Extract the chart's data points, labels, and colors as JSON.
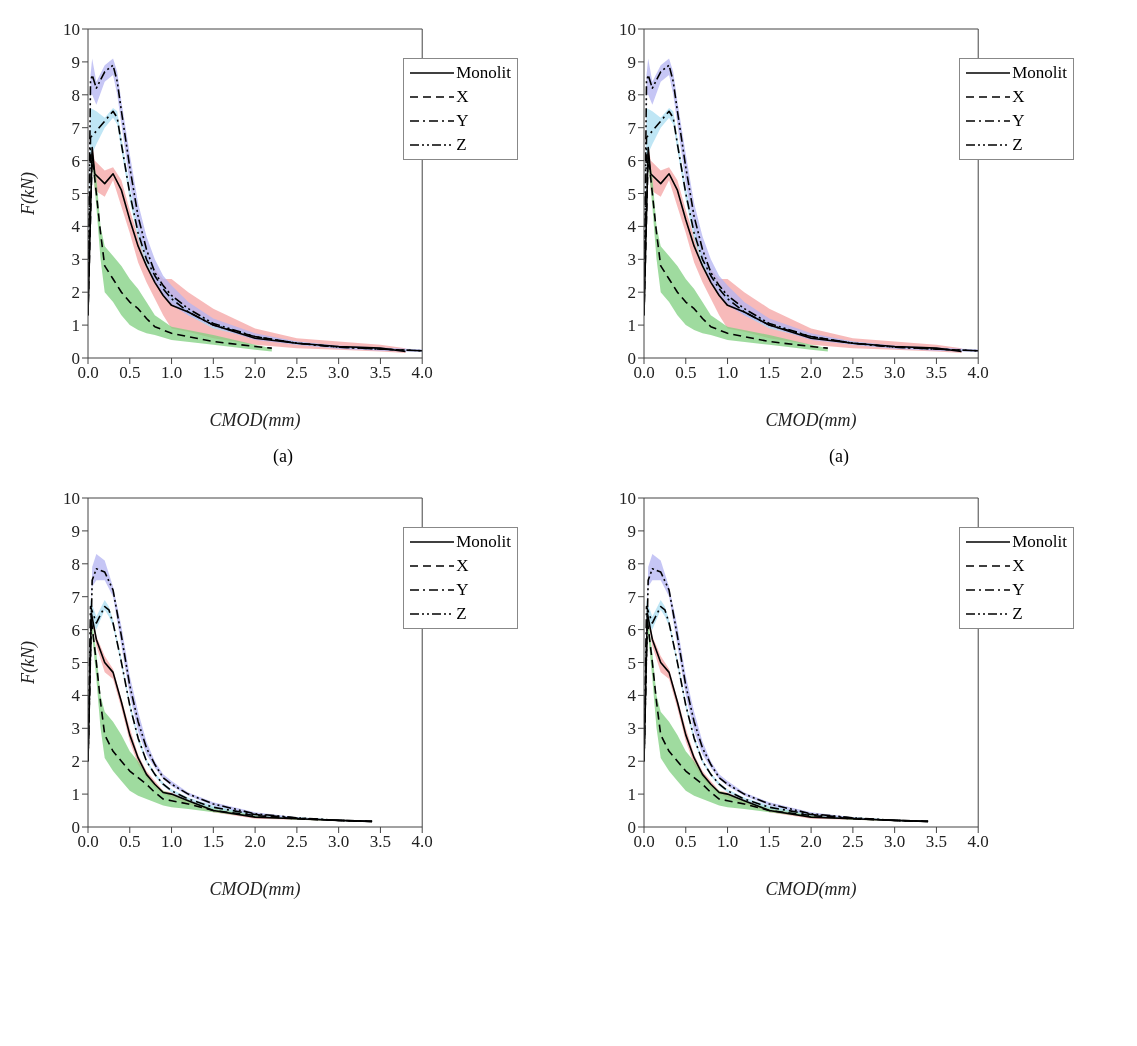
{
  "chart_data": [
    {
      "type": "line",
      "xlabel": "CMOD(mm)",
      "ylabel": "F(kN)",
      "annotations": [
        "(a)"
      ],
      "xlim": [
        0,
        4
      ],
      "ylim": [
        0,
        10
      ],
      "xticks": [
        {
          "value": 0,
          "label": "0.0"
        },
        {
          "value": 0.5,
          "label": "0.5"
        },
        {
          "value": 1,
          "label": "1.0"
        },
        {
          "value": 1.5,
          "label": "1.5"
        },
        {
          "value": 2,
          "label": "2.0"
        },
        {
          "value": 2.5,
          "label": "2.5"
        },
        {
          "value": 3,
          "label": "3.0"
        },
        {
          "value": 3.5,
          "label": "3.5"
        },
        {
          "value": 4,
          "label": "4.0"
        }
      ],
      "yticks": [
        0,
        1,
        2,
        3,
        4,
        5,
        6,
        7,
        8,
        9,
        10
      ],
      "grid": false,
      "legend": "top right",
      "marker": "none",
      "series": [
        {
          "name": "Monolit",
          "color": "#000000",
          "line_style": "solid",
          "x": [
            0,
            0.05,
            0.08,
            0.2,
            0.3,
            0.4,
            0.5,
            0.6,
            0.7,
            0.8,
            0.9,
            1.0,
            1.2,
            1.5,
            2.0,
            2.5,
            3.0,
            3.5,
            3.8
          ],
          "values": [
            1.3,
            6.4,
            5.6,
            5.3,
            5.6,
            5.1,
            4.2,
            3.4,
            2.8,
            2.3,
            1.9,
            1.6,
            1.4,
            1.0,
            0.6,
            0.45,
            0.35,
            0.3,
            0.2
          ],
          "lower": [
            1.3,
            6.2,
            5.1,
            4.9,
            5.4,
            4.6,
            3.8,
            2.9,
            2.3,
            1.8,
            1.3,
            0.9,
            0.8,
            0.6,
            0.4,
            0.3,
            0.25,
            0.2,
            0.15
          ],
          "upper": [
            1.3,
            6.5,
            6.0,
            5.7,
            5.8,
            5.4,
            4.5,
            3.7,
            3.0,
            2.7,
            2.4,
            2.4,
            2.0,
            1.5,
            0.9,
            0.6,
            0.5,
            0.4,
            0.3
          ]
        },
        {
          "name": "X",
          "color": "#000000",
          "line_style": "dashed",
          "x": [
            0,
            0.05,
            0.1,
            0.15,
            0.2,
            0.3,
            0.4,
            0.5,
            0.6,
            0.7,
            0.8,
            1.0,
            1.5,
            2.0,
            2.2
          ],
          "values": [
            1.3,
            6.2,
            5.0,
            3.8,
            2.8,
            2.4,
            2.0,
            1.7,
            1.5,
            1.2,
            0.95,
            0.75,
            0.5,
            0.35,
            0.3
          ],
          "lower": [
            1.3,
            6.0,
            4.6,
            3.0,
            2.0,
            1.7,
            1.3,
            1.0,
            0.85,
            0.75,
            0.7,
            0.55,
            0.4,
            0.25,
            0.2
          ],
          "upper": [
            1.3,
            6.3,
            5.5,
            4.0,
            3.4,
            3.1,
            2.8,
            2.4,
            2.1,
            1.7,
            1.3,
            0.95,
            0.7,
            0.4,
            0.3
          ]
        },
        {
          "name": "Y",
          "color": "#000000",
          "line_style": "dashdot",
          "x": [
            0,
            0.03,
            0.1,
            0.2,
            0.3,
            0.35,
            0.4,
            0.5,
            0.6,
            0.7,
            0.8,
            0.9,
            1.0,
            1.2,
            1.5,
            2.0,
            2.5,
            3.0,
            3.5,
            4.0
          ],
          "values": [
            1.3,
            6.7,
            6.9,
            7.2,
            7.5,
            7.3,
            6.5,
            5.0,
            3.8,
            3.0,
            2.5,
            2.1,
            1.8,
            1.4,
            1.0,
            0.65,
            0.45,
            0.33,
            0.27,
            0.22
          ],
          "lower": [
            1.3,
            6.1,
            6.5,
            7.0,
            7.3,
            7.1,
            6.3,
            4.8,
            3.6,
            2.8,
            2.4,
            2.0,
            1.7,
            1.3,
            0.9,
            0.6,
            0.4,
            0.3,
            0.24,
            0.2
          ],
          "upper": [
            1.3,
            7.6,
            7.5,
            7.3,
            7.6,
            7.5,
            6.7,
            5.2,
            4.0,
            3.2,
            2.6,
            2.2,
            1.9,
            1.5,
            1.1,
            0.7,
            0.5,
            0.36,
            0.3,
            0.24
          ]
        },
        {
          "name": "Z",
          "color": "#000000",
          "line_style": "dashdotdot",
          "x": [
            0,
            0.03,
            0.05,
            0.1,
            0.2,
            0.3,
            0.35,
            0.4,
            0.5,
            0.6,
            0.7,
            0.8,
            0.9,
            1.0,
            1.2,
            1.5,
            2.0,
            2.5,
            3.0,
            3.5,
            4.0
          ],
          "values": [
            1.3,
            8.4,
            8.6,
            8.2,
            8.7,
            8.9,
            8.4,
            7.5,
            5.8,
            4.3,
            3.3,
            2.6,
            2.2,
            1.9,
            1.5,
            1.05,
            0.65,
            0.45,
            0.33,
            0.27,
            0.22
          ],
          "lower": [
            1.3,
            8.0,
            8.0,
            7.7,
            8.4,
            8.6,
            8.0,
            7.1,
            5.3,
            3.9,
            3.0,
            2.3,
            1.9,
            1.6,
            1.3,
            0.95,
            0.55,
            0.4,
            0.28,
            0.22,
            0.18
          ],
          "upper": [
            1.3,
            8.6,
            9.1,
            8.4,
            8.9,
            9.1,
            8.7,
            7.8,
            6.2,
            4.7,
            3.7,
            3.0,
            2.5,
            2.2,
            1.7,
            1.2,
            0.75,
            0.5,
            0.38,
            0.32,
            0.26
          ]
        }
      ]
    },
    {
      "type": "line",
      "xlabel": "CMOD(mm)",
      "annotations": [
        "(a)"
      ],
      "xlim": [
        0,
        4
      ],
      "ylim": [
        0,
        10
      ],
      "xticks": [
        {
          "value": 0,
          "label": "0.0"
        },
        {
          "value": 0.5,
          "label": "0.5"
        },
        {
          "value": 1,
          "label": "1.0"
        },
        {
          "value": 1.5,
          "label": "1.5"
        },
        {
          "value": 2,
          "label": "2.0"
        },
        {
          "value": 2.5,
          "label": "2.5"
        },
        {
          "value": 3,
          "label": "3.0"
        },
        {
          "value": 3.5,
          "label": "3.5"
        },
        {
          "value": 4,
          "label": "4.0"
        }
      ],
      "yticks": [
        0,
        1,
        2,
        3,
        4,
        5,
        6,
        7,
        8,
        9,
        10
      ],
      "grid": false,
      "legend": "top right",
      "marker": "none",
      "series": [
        {
          "name": "Monolit",
          "color": "#000000",
          "line_style": "solid",
          "x": [
            0,
            0.05,
            0.08,
            0.2,
            0.3,
            0.4,
            0.5,
            0.6,
            0.7,
            0.8,
            0.9,
            1.0,
            1.2,
            1.5,
            2.0,
            2.5,
            3.0,
            3.5,
            3.8
          ],
          "values": [
            1.3,
            6.4,
            5.6,
            5.3,
            5.6,
            5.1,
            4.2,
            3.4,
            2.8,
            2.3,
            1.9,
            1.6,
            1.4,
            1.0,
            0.6,
            0.45,
            0.35,
            0.3,
            0.2
          ],
          "lower": [
            1.3,
            6.2,
            5.1,
            4.9,
            5.4,
            4.6,
            3.8,
            2.9,
            2.3,
            1.8,
            1.3,
            0.9,
            0.8,
            0.6,
            0.4,
            0.3,
            0.25,
            0.2,
            0.15
          ],
          "upper": [
            1.3,
            6.5,
            6.0,
            5.7,
            5.8,
            5.4,
            4.5,
            3.7,
            3.0,
            2.7,
            2.4,
            2.4,
            2.0,
            1.5,
            0.9,
            0.6,
            0.5,
            0.4,
            0.3
          ]
        },
        {
          "name": "X",
          "color": "#000000",
          "line_style": "dashed",
          "x": [
            0,
            0.05,
            0.1,
            0.15,
            0.2,
            0.3,
            0.4,
            0.5,
            0.6,
            0.7,
            0.8,
            1.0,
            1.5,
            2.0,
            2.2
          ],
          "values": [
            1.3,
            6.2,
            5.0,
            3.8,
            2.8,
            2.4,
            2.0,
            1.7,
            1.5,
            1.2,
            0.95,
            0.75,
            0.5,
            0.35,
            0.3
          ],
          "lower": [
            1.3,
            6.0,
            4.6,
            3.0,
            2.0,
            1.7,
            1.3,
            1.0,
            0.85,
            0.75,
            0.7,
            0.55,
            0.4,
            0.25,
            0.2
          ],
          "upper": [
            1.3,
            6.3,
            5.5,
            4.0,
            3.4,
            3.1,
            2.8,
            2.4,
            2.1,
            1.7,
            1.3,
            0.95,
            0.7,
            0.4,
            0.3
          ]
        },
        {
          "name": "Y",
          "color": "#000000",
          "line_style": "dashdot",
          "x": [
            0,
            0.03,
            0.1,
            0.2,
            0.3,
            0.35,
            0.4,
            0.5,
            0.6,
            0.7,
            0.8,
            0.9,
            1.0,
            1.2,
            1.5,
            2.0,
            2.5,
            3.0,
            3.5,
            4.0
          ],
          "values": [
            1.3,
            6.7,
            6.9,
            7.2,
            7.5,
            7.3,
            6.5,
            5.0,
            3.8,
            3.0,
            2.5,
            2.1,
            1.8,
            1.4,
            1.0,
            0.65,
            0.45,
            0.33,
            0.27,
            0.22
          ],
          "lower": [
            1.3,
            6.1,
            6.5,
            7.0,
            7.3,
            7.1,
            6.3,
            4.8,
            3.6,
            2.8,
            2.4,
            2.0,
            1.7,
            1.3,
            0.9,
            0.6,
            0.4,
            0.3,
            0.24,
            0.2
          ],
          "upper": [
            1.3,
            7.6,
            7.5,
            7.3,
            7.6,
            7.5,
            6.7,
            5.2,
            4.0,
            3.2,
            2.6,
            2.2,
            1.9,
            1.5,
            1.1,
            0.7,
            0.5,
            0.36,
            0.3,
            0.24
          ]
        },
        {
          "name": "Z",
          "color": "#000000",
          "line_style": "dashdotdot",
          "x": [
            0,
            0.03,
            0.05,
            0.1,
            0.2,
            0.3,
            0.35,
            0.4,
            0.5,
            0.6,
            0.7,
            0.8,
            0.9,
            1.0,
            1.2,
            1.5,
            2.0,
            2.5,
            3.0,
            3.5,
            4.0
          ],
          "values": [
            1.3,
            8.4,
            8.6,
            8.2,
            8.7,
            8.9,
            8.4,
            7.5,
            5.8,
            4.3,
            3.3,
            2.6,
            2.2,
            1.9,
            1.5,
            1.05,
            0.65,
            0.45,
            0.33,
            0.27,
            0.22
          ],
          "lower": [
            1.3,
            8.0,
            8.0,
            7.7,
            8.4,
            8.6,
            8.0,
            7.1,
            5.3,
            3.9,
            3.0,
            2.3,
            1.9,
            1.6,
            1.3,
            0.95,
            0.55,
            0.4,
            0.28,
            0.22,
            0.18
          ],
          "upper": [
            1.3,
            8.6,
            9.1,
            8.4,
            8.9,
            9.1,
            8.7,
            7.8,
            6.2,
            4.7,
            3.7,
            3.0,
            2.5,
            2.2,
            1.7,
            1.2,
            0.75,
            0.5,
            0.38,
            0.32,
            0.26
          ]
        }
      ]
    },
    {
      "type": "line",
      "xlabel": "CMOD(mm)",
      "ylabel": "F(kN)",
      "xlim": [
        0,
        4
      ],
      "ylim": [
        0,
        10
      ],
      "xticks": [
        {
          "value": 0,
          "label": "0.0"
        },
        {
          "value": 0.5,
          "label": "0.5"
        },
        {
          "value": 1,
          "label": "1.0"
        },
        {
          "value": 1.5,
          "label": "1.5"
        },
        {
          "value": 2,
          "label": "2.0"
        },
        {
          "value": 2.5,
          "label": "2.5"
        },
        {
          "value": 3,
          "label": "3.0"
        },
        {
          "value": 3.5,
          "label": "3.5"
        },
        {
          "value": 4,
          "label": "4.0"
        }
      ],
      "yticks": [
        0,
        1,
        2,
        3,
        4,
        5,
        6,
        7,
        8,
        9,
        10
      ],
      "grid": false,
      "legend": "top right",
      "marker": "none",
      "series": [
        {
          "name": "Monolit",
          "color": "#000000",
          "line_style": "solid",
          "x": [
            0,
            0.04,
            0.1,
            0.2,
            0.3,
            0.4,
            0.5,
            0.6,
            0.7,
            0.8,
            0.9,
            1.0,
            1.2,
            1.5,
            2.0,
            2.5,
            3.0,
            3.4
          ],
          "values": [
            2.0,
            6.5,
            5.7,
            5.0,
            4.7,
            3.8,
            2.8,
            2.1,
            1.6,
            1.3,
            1.05,
            1.0,
            0.8,
            0.5,
            0.3,
            0.25,
            0.2,
            0.17
          ],
          "lower": [
            2.0,
            6.4,
            5.5,
            4.7,
            4.5,
            3.6,
            2.6,
            1.9,
            1.5,
            1.2,
            1.0,
            0.9,
            0.7,
            0.45,
            0.25,
            0.22,
            0.18,
            0.15
          ],
          "upper": [
            2.0,
            6.6,
            5.8,
            5.2,
            4.8,
            3.9,
            3.0,
            2.2,
            1.7,
            1.4,
            1.1,
            1.05,
            0.85,
            0.55,
            0.35,
            0.28,
            0.22,
            0.19
          ]
        },
        {
          "name": "X",
          "color": "#000000",
          "line_style": "dashed",
          "x": [
            0,
            0.04,
            0.1,
            0.15,
            0.2,
            0.3,
            0.4,
            0.5,
            0.6,
            0.7,
            0.8,
            0.9,
            1.0,
            1.2,
            1.5,
            2.0,
            2.5,
            3.0,
            3.4
          ],
          "values": [
            2.0,
            6.3,
            5.0,
            3.8,
            2.8,
            2.3,
            2.0,
            1.7,
            1.5,
            1.3,
            1.05,
            0.85,
            0.8,
            0.7,
            0.5,
            0.35,
            0.25,
            0.2,
            0.17
          ],
          "lower": [
            2.0,
            6.1,
            4.5,
            3.0,
            2.1,
            1.7,
            1.4,
            1.1,
            0.95,
            0.85,
            0.75,
            0.65,
            0.6,
            0.55,
            0.45,
            0.3,
            0.22,
            0.18,
            0.15
          ],
          "upper": [
            2.0,
            6.4,
            5.3,
            4.0,
            3.5,
            3.2,
            2.8,
            2.3,
            2.0,
            1.6,
            1.3,
            1.1,
            1.0,
            0.8,
            0.6,
            0.4,
            0.3,
            0.22,
            0.19
          ]
        },
        {
          "name": "Y",
          "color": "#000000",
          "line_style": "dashdot",
          "x": [
            0,
            0.03,
            0.1,
            0.2,
            0.25,
            0.3,
            0.4,
            0.5,
            0.6,
            0.7,
            0.8,
            0.9,
            1.0,
            1.2,
            1.5,
            2.0,
            2.5,
            3.0,
            3.4
          ],
          "values": [
            2.0,
            6.7,
            6.2,
            6.7,
            6.6,
            6.2,
            5.0,
            3.7,
            2.7,
            2.0,
            1.6,
            1.3,
            1.1,
            0.85,
            0.6,
            0.38,
            0.27,
            0.2,
            0.17
          ],
          "lower": [
            2.0,
            6.2,
            6.0,
            6.6,
            6.4,
            6.1,
            4.9,
            3.6,
            2.6,
            1.95,
            1.55,
            1.25,
            1.05,
            0.8,
            0.55,
            0.35,
            0.25,
            0.18,
            0.15
          ],
          "upper": [
            2.0,
            6.9,
            6.4,
            6.9,
            6.7,
            6.3,
            5.1,
            3.8,
            2.8,
            2.05,
            1.65,
            1.35,
            1.15,
            0.9,
            0.65,
            0.4,
            0.3,
            0.22,
            0.19
          ]
        },
        {
          "name": "Z",
          "color": "#000000",
          "line_style": "dashdotdot",
          "x": [
            0,
            0.05,
            0.1,
            0.2,
            0.3,
            0.4,
            0.5,
            0.6,
            0.7,
            0.8,
            0.9,
            1.0,
            1.2,
            1.5,
            2.0,
            2.5,
            3.0,
            3.4
          ],
          "values": [
            2.0,
            7.5,
            7.85,
            7.75,
            7.2,
            5.8,
            4.3,
            3.2,
            2.4,
            1.9,
            1.5,
            1.3,
            1.0,
            0.7,
            0.4,
            0.28,
            0.2,
            0.17
          ],
          "lower": [
            2.0,
            7.3,
            7.5,
            7.5,
            7.0,
            5.5,
            4.0,
            2.9,
            2.2,
            1.8,
            1.45,
            1.25,
            0.95,
            0.65,
            0.35,
            0.25,
            0.18,
            0.15
          ],
          "upper": [
            2.0,
            7.9,
            8.3,
            8.1,
            7.3,
            6.1,
            4.6,
            3.5,
            2.6,
            2.0,
            1.6,
            1.4,
            1.05,
            0.75,
            0.45,
            0.3,
            0.22,
            0.19
          ]
        }
      ]
    },
    {
      "type": "line",
      "xlabel": "CMOD(mm)",
      "xlim": [
        0,
        4
      ],
      "ylim": [
        0,
        10
      ],
      "xticks": [
        {
          "value": 0,
          "label": "0.0"
        },
        {
          "value": 0.5,
          "label": "0.5"
        },
        {
          "value": 1,
          "label": "1.0"
        },
        {
          "value": 1.5,
          "label": "1.5"
        },
        {
          "value": 2,
          "label": "2.0"
        },
        {
          "value": 2.5,
          "label": "2.5"
        },
        {
          "value": 3,
          "label": "3.0"
        },
        {
          "value": 3.5,
          "label": "3.5"
        },
        {
          "value": 4,
          "label": "4.0"
        }
      ],
      "yticks": [
        0,
        1,
        2,
        3,
        4,
        5,
        6,
        7,
        8,
        9,
        10
      ],
      "grid": false,
      "legend": "top right",
      "marker": "none",
      "series": [
        {
          "name": "Monolit",
          "color": "#000000",
          "line_style": "solid",
          "x": [
            0,
            0.04,
            0.1,
            0.2,
            0.3,
            0.4,
            0.5,
            0.6,
            0.7,
            0.8,
            0.9,
            1.0,
            1.2,
            1.5,
            2.0,
            2.5,
            3.0,
            3.4
          ],
          "values": [
            2.0,
            6.5,
            5.7,
            5.0,
            4.7,
            3.8,
            2.8,
            2.1,
            1.6,
            1.3,
            1.05,
            1.0,
            0.8,
            0.5,
            0.3,
            0.25,
            0.2,
            0.17
          ],
          "lower": [
            2.0,
            6.4,
            5.5,
            4.7,
            4.5,
            3.6,
            2.6,
            1.9,
            1.5,
            1.2,
            1.0,
            0.9,
            0.7,
            0.45,
            0.25,
            0.22,
            0.18,
            0.15
          ],
          "upper": [
            2.0,
            6.6,
            5.8,
            5.2,
            4.8,
            3.9,
            3.0,
            2.2,
            1.7,
            1.4,
            1.1,
            1.05,
            0.85,
            0.55,
            0.35,
            0.28,
            0.22,
            0.19
          ]
        },
        {
          "name": "X",
          "color": "#000000",
          "line_style": "dashed",
          "x": [
            0,
            0.04,
            0.1,
            0.15,
            0.2,
            0.3,
            0.4,
            0.5,
            0.6,
            0.7,
            0.8,
            0.9,
            1.0,
            1.2,
            1.5,
            2.0,
            2.5,
            3.0,
            3.4
          ],
          "values": [
            2.0,
            6.3,
            5.0,
            3.8,
            2.8,
            2.3,
            2.0,
            1.7,
            1.5,
            1.3,
            1.05,
            0.85,
            0.8,
            0.7,
            0.5,
            0.35,
            0.25,
            0.2,
            0.17
          ],
          "lower": [
            2.0,
            6.1,
            4.5,
            3.0,
            2.1,
            1.7,
            1.4,
            1.1,
            0.95,
            0.85,
            0.75,
            0.65,
            0.6,
            0.55,
            0.45,
            0.3,
            0.22,
            0.18,
            0.15
          ],
          "upper": [
            2.0,
            6.4,
            5.3,
            4.0,
            3.5,
            3.2,
            2.8,
            2.3,
            2.0,
            1.6,
            1.3,
            1.1,
            1.0,
            0.8,
            0.6,
            0.4,
            0.3,
            0.22,
            0.19
          ]
        },
        {
          "name": "Y",
          "color": "#000000",
          "line_style": "dashdot",
          "x": [
            0,
            0.03,
            0.1,
            0.2,
            0.25,
            0.3,
            0.4,
            0.5,
            0.6,
            0.7,
            0.8,
            0.9,
            1.0,
            1.2,
            1.5,
            2.0,
            2.5,
            3.0,
            3.4
          ],
          "values": [
            2.0,
            6.7,
            6.2,
            6.7,
            6.6,
            6.2,
            5.0,
            3.7,
            2.7,
            2.0,
            1.6,
            1.3,
            1.1,
            0.85,
            0.6,
            0.38,
            0.27,
            0.2,
            0.17
          ],
          "lower": [
            2.0,
            6.2,
            6.0,
            6.6,
            6.4,
            6.1,
            4.9,
            3.6,
            2.6,
            1.95,
            1.55,
            1.25,
            1.05,
            0.8,
            0.55,
            0.35,
            0.25,
            0.18,
            0.15
          ],
          "upper": [
            2.0,
            6.9,
            6.4,
            6.9,
            6.7,
            6.3,
            5.1,
            3.8,
            2.8,
            2.05,
            1.65,
            1.35,
            1.15,
            0.9,
            0.65,
            0.4,
            0.3,
            0.22,
            0.19
          ]
        },
        {
          "name": "Z",
          "color": "#000000",
          "line_style": "dashdotdot",
          "x": [
            0,
            0.05,
            0.1,
            0.2,
            0.3,
            0.4,
            0.5,
            0.6,
            0.7,
            0.8,
            0.9,
            1.0,
            1.2,
            1.5,
            2.0,
            2.5,
            3.0,
            3.4
          ],
          "values": [
            2.0,
            7.5,
            7.85,
            7.75,
            7.2,
            5.8,
            4.3,
            3.2,
            2.4,
            1.9,
            1.5,
            1.3,
            1.0,
            0.7,
            0.4,
            0.28,
            0.2,
            0.17
          ],
          "lower": [
            2.0,
            7.3,
            7.5,
            7.5,
            7.0,
            5.5,
            4.0,
            2.9,
            2.2,
            1.8,
            1.45,
            1.25,
            0.95,
            0.65,
            0.35,
            0.25,
            0.18,
            0.15
          ],
          "upper": [
            2.0,
            7.9,
            8.3,
            8.1,
            7.3,
            6.1,
            4.6,
            3.5,
            2.6,
            2.0,
            1.6,
            1.4,
            1.05,
            0.75,
            0.45,
            0.3,
            0.22,
            0.19
          ]
        }
      ]
    }
  ]
}
